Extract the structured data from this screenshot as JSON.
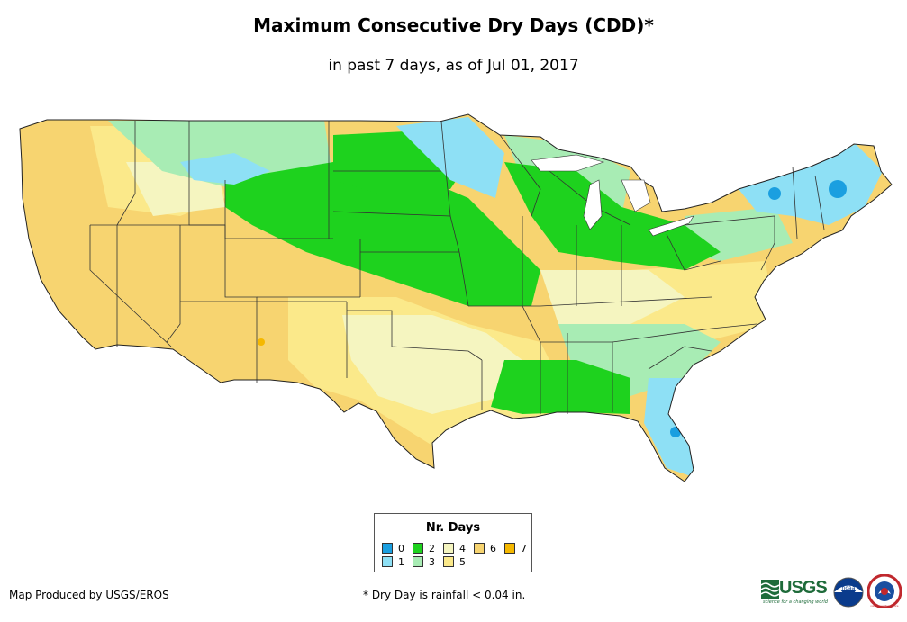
{
  "title": "Maximum Consecutive Dry Days (CDD)*",
  "subtitle": "in past 7 days, as of Jul 01, 2017",
  "legend": {
    "title": "Nr. Days",
    "items": [
      {
        "label": "0",
        "color": "#1a9fe0"
      },
      {
        "label": "1",
        "color": "#8ee0f5"
      },
      {
        "label": "2",
        "color": "#1ed21e"
      },
      {
        "label": "3",
        "color": "#a8ecb4"
      },
      {
        "label": "4",
        "color": "#f5f5c0"
      },
      {
        "label": "5",
        "color": "#fbe98a"
      },
      {
        "label": "6",
        "color": "#f7d470"
      },
      {
        "label": "7",
        "color": "#f5b800"
      }
    ]
  },
  "credit": "Map Produced by USGS/EROS",
  "footnote": "* Dry Day is rainfall < 0.04 in.",
  "logos": {
    "usgs_wordmark": "USGS",
    "usgs_tagline": "science for a changing world",
    "noaa_wordmark": "noaa",
    "nws_name": "national weather service"
  }
}
